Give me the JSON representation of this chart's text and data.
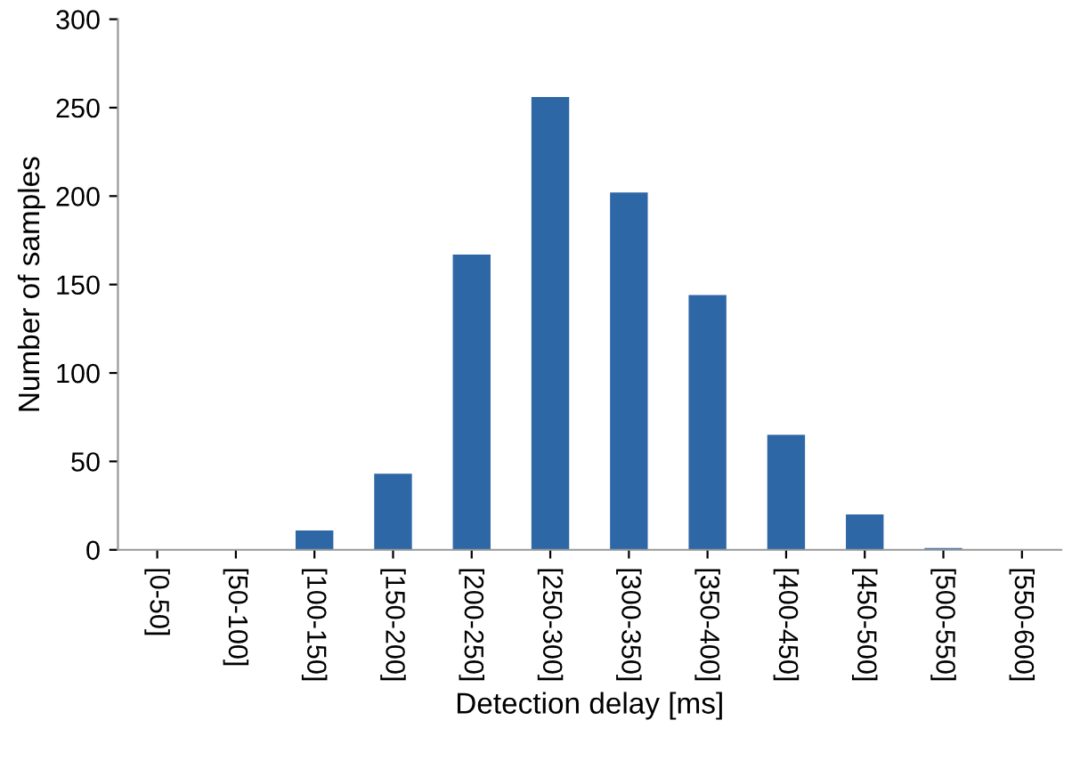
{
  "chart_data": {
    "type": "bar",
    "xlabel": "Detection delay [ms]",
    "ylabel": "Number of samples",
    "categories": [
      "[0-50]",
      "[50-100]",
      "[100-150]",
      "[150-200]",
      "[200-250]",
      "[250-300]",
      "[300-350]",
      "[350-400]",
      "[400-450]",
      "[450-500]",
      "[500-550]",
      "[550-600]"
    ],
    "values": [
      0,
      0,
      11,
      43,
      167,
      256,
      202,
      144,
      65,
      20,
      1,
      0
    ],
    "color": "#2e67a6",
    "ylim": [
      0,
      300
    ],
    "yticks": [
      0,
      50,
      100,
      150,
      200,
      250,
      300
    ],
    "grid": false
  }
}
